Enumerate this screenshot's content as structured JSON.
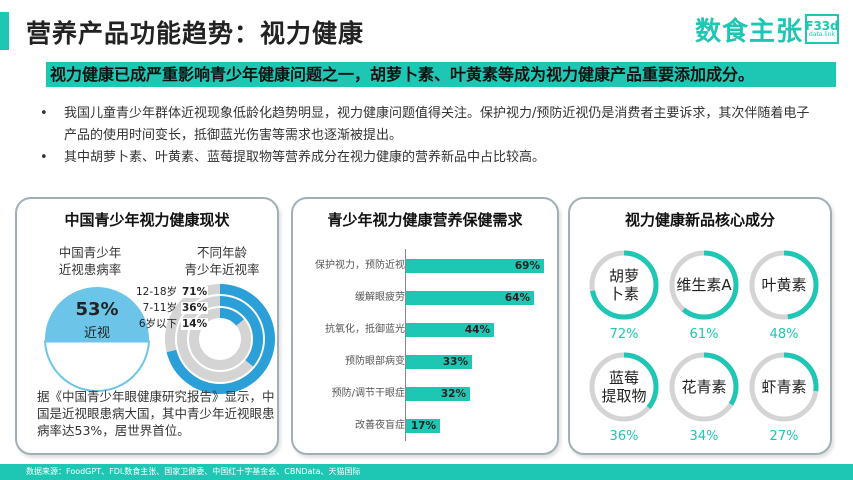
{
  "header": {
    "title": "营养产品功能趋势：视力健康",
    "logo_text": "数食主张",
    "logo_badge_main": "F33d",
    "logo_badge_sub": "data.link"
  },
  "highlight": "视力健康已成严重影响青少年健康问题之一，胡萝卜素、叶黄素等成为视力健康产品重要添加成分。",
  "bullets": [
    "我国儿童青少年群体近视现象低龄化趋势明显，视力健康问题值得关注。保护视力/预防近视仍是消费者主要诉求，其次伴随着电子产品的使用时间变长，抵御蓝光伤害等需求也逐渐被提出。",
    "其中胡萝卜素、叶黄素、蓝莓提取物等营养成分在视力健康的营养新品中占比较高。"
  ],
  "card1": {
    "title": "中国青少年视力健康现状",
    "left_label_line1": "中国青少年",
    "left_label_line2": "近视患病率",
    "right_label_line1": "不同年龄",
    "right_label_line2": "青少年近视率",
    "pie_value": "53%",
    "pie_text": "近视",
    "footnote": "据《中国青少年眼健康研究报告》显示，中国是近视眼患病大国，其中青少年近视眼患病率达53%，居世界首位。"
  },
  "card2": {
    "title": "青少年视力健康营养保健需求"
  },
  "card3": {
    "title": "视力健康新品核心成分",
    "items": [
      {
        "name_line1": "胡萝",
        "name_line2": "卜素",
        "pct": "72%"
      },
      {
        "name_line1": "维生素A",
        "name_line2": "",
        "pct": "61%"
      },
      {
        "name_line1": "叶黄素",
        "name_line2": "",
        "pct": "48%"
      },
      {
        "name_line1": "蓝莓",
        "name_line2": "提取物",
        "pct": "36%"
      },
      {
        "name_line1": "花青素",
        "name_line2": "",
        "pct": "34%"
      },
      {
        "name_line1": "虾青素",
        "name_line2": "",
        "pct": "27%"
      }
    ]
  },
  "footer": "数据来源：FoodGPT、FDL数食主张、国家卫健委、中国红十字基金会、CBNData、天猫国际",
  "colors": {
    "accent": "#1ec7b3",
    "pie_light": "#6cc5e8",
    "ring_gray": "#d4d4d4",
    "ring_blue": "#2a9fd8"
  },
  "chart_data": [
    {
      "type": "pie",
      "title": "中国青少年近视患病率",
      "categories": [
        "近视",
        ""
      ],
      "values": [
        53,
        47
      ]
    },
    {
      "type": "bar",
      "title": "不同年龄青少年近视率",
      "categories": [
        "12-18岁",
        "7-11岁",
        "6岁以下"
      ],
      "values": [
        71,
        36,
        14
      ],
      "ylim": [
        0,
        100
      ]
    },
    {
      "type": "bar",
      "title": "青少年视力健康营养保健需求",
      "categories": [
        "保护视力，预防近视",
        "缓解眼疲劳",
        "抗氧化，抵御蓝光",
        "预防眼部病变",
        "预防/调节干眼症",
        "改善夜盲症"
      ],
      "values": [
        69,
        64,
        44,
        33,
        32,
        17
      ],
      "xlim": [
        0,
        100
      ]
    },
    {
      "type": "pie",
      "title": "视力健康新品核心成分",
      "categories": [
        "胡萝卜素",
        "维生素A",
        "叶黄素",
        "蓝莓提取物",
        "花青素",
        "虾青素"
      ],
      "values": [
        72,
        61,
        48,
        36,
        34,
        27
      ]
    }
  ]
}
